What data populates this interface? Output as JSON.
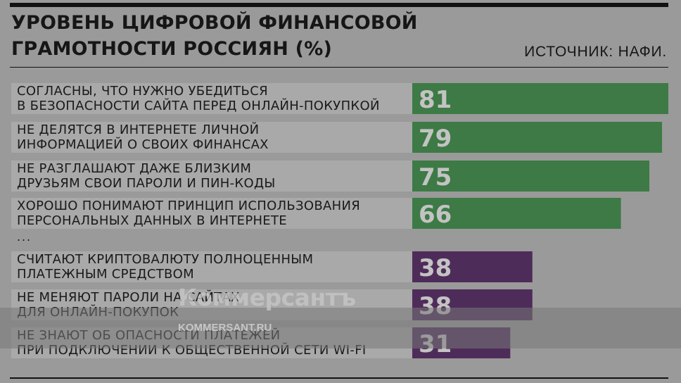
{
  "header": {
    "title": "УРОВЕНЬ ЦИФРОВОЙ ФИНАНСОВОЙ\nГРАМОТНОСТИ РОССИЯН (%)",
    "source": "ИСТОЧНИК: НАФИ."
  },
  "ellipsis": "...",
  "watermark": {
    "logo": "Коммерсантъ",
    "url": "KOMMERSANT.RU"
  },
  "colors": {
    "background": "#9a9a9a",
    "label_band": "#a9a9a9",
    "green": "#3d7a45",
    "purple": "#4e2c5a"
  },
  "chart_data": {
    "type": "bar",
    "orientation": "horizontal",
    "xlim": [
      0,
      100
    ],
    "categories": [
      [
        "СОГЛАСНЫ, ЧТО НУЖНО УБЕДИТЬСЯ",
        "В БЕЗОПАСНОСТИ САЙТА ПЕРЕД ОНЛАЙН-ПОКУПКОЙ"
      ],
      [
        "НЕ ДЕЛЯТСЯ В ИНТЕРНЕТЕ ЛИЧНОЙ",
        "ИНФОРМАЦИЕЙ О СВОИХ ФИНАНСАХ"
      ],
      [
        "НЕ РАЗГЛАШАЮТ ДАЖЕ БЛИЗКИМ",
        "ДРУЗЬЯМ СВОИ ПАРОЛИ И ПИН-КОДЫ"
      ],
      [
        "ХОРОШО ПОНИМАЮТ ПРИНЦИП ИСПОЛЬЗОВАНИЯ",
        "ПЕРСОНАЛЬНЫХ ДАННЫХ В ИНТЕРНЕТЕ"
      ],
      [
        "СЧИТАЮТ КРИПТОВАЛЮТУ ПОЛНОЦЕННЫМ",
        "ПЛАТЕЖНЫМ СРЕДСТВОМ"
      ],
      [
        "НЕ МЕНЯЮТ ПАРОЛИ НА САЙТАХ",
        "ДЛЯ ОНЛАЙН-ПОКУПОК"
      ],
      [
        "НЕ ЗНАЮТ ОБ ОПАСНОСТИ ПЛАТЕЖЕЙ",
        "ПРИ ПОДКЛЮЧЕНИИ К ОБЩЕСТВЕННОЙ СЕТИ WI-FI"
      ]
    ],
    "values": [
      81,
      79,
      75,
      66,
      38,
      38,
      31
    ],
    "bar_colors": [
      "green",
      "green",
      "green",
      "green",
      "purple",
      "purple",
      "purple"
    ]
  }
}
